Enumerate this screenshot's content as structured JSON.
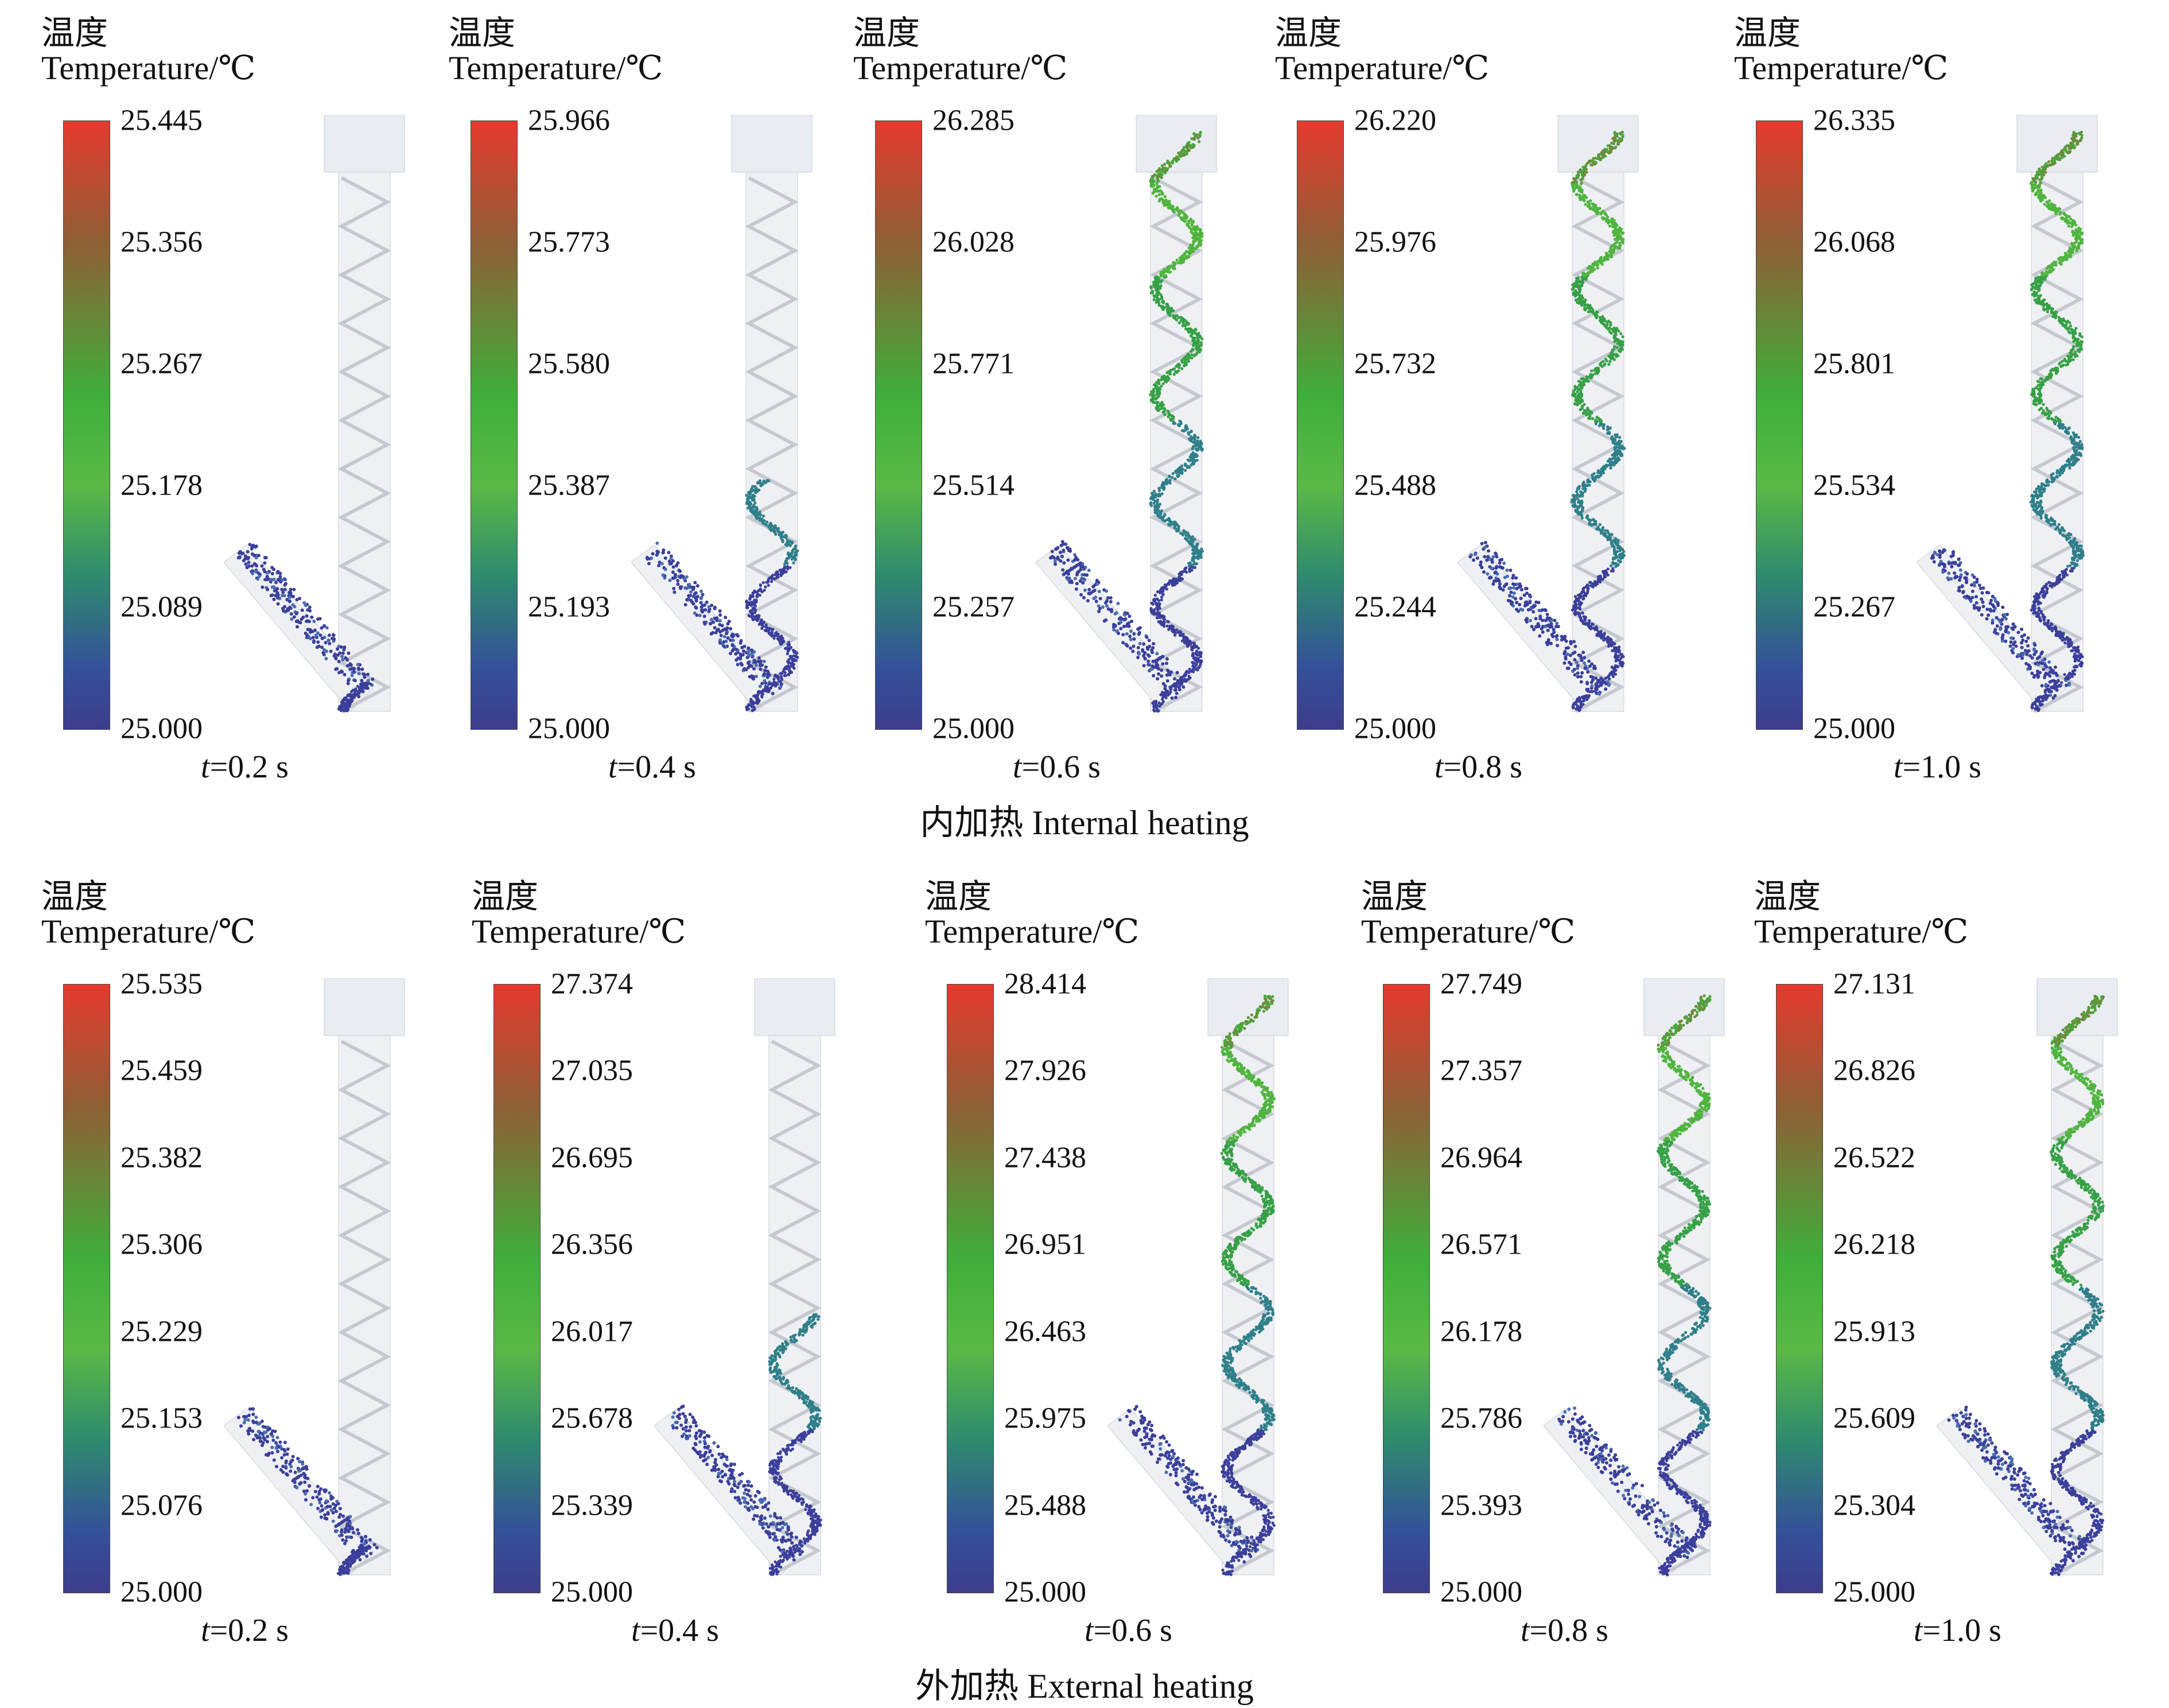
{
  "legend_title_cn": "温度",
  "legend_title_en": "Temperature/℃",
  "rows": [
    {
      "caption": "内加热 Internal heating",
      "panels": [
        {
          "time_var": "t",
          "time_val": "=0.2 s",
          "fill": 0.05,
          "ticks": [
            "25.445",
            "25.356",
            "25.267",
            "25.178",
            "25.089",
            "25.000"
          ]
        },
        {
          "time_var": "t",
          "time_val": "=0.4 s",
          "fill": 0.4,
          "ticks": [
            "25.966",
            "25.773",
            "25.580",
            "25.387",
            "25.193",
            "25.000"
          ]
        },
        {
          "time_var": "t",
          "time_val": "=0.6 s",
          "fill": 1.0,
          "ticks": [
            "26.285",
            "26.028",
            "25.771",
            "25.514",
            "25.257",
            "25.000"
          ]
        },
        {
          "time_var": "t",
          "time_val": "=0.8 s",
          "fill": 1.0,
          "ticks": [
            "26.220",
            "25.976",
            "25.732",
            "25.488",
            "25.244",
            "25.000"
          ]
        },
        {
          "time_var": "t",
          "time_val": "=1.0 s",
          "fill": 1.0,
          "ticks": [
            "26.335",
            "26.068",
            "25.801",
            "25.534",
            "25.267",
            "25.000"
          ]
        }
      ]
    },
    {
      "caption": "外加热 External heating",
      "panels": [
        {
          "time_var": "t",
          "time_val": "=0.2 s",
          "fill": 0.05,
          "ticks": [
            "25.535",
            "25.459",
            "25.382",
            "25.306",
            "25.229",
            "25.153",
            "25.076",
            "25.000"
          ]
        },
        {
          "time_var": "t",
          "time_val": "=0.4 s",
          "fill": 0.45,
          "ticks": [
            "27.374",
            "27.035",
            "26.695",
            "26.356",
            "26.017",
            "25.678",
            "25.339",
            "25.000"
          ]
        },
        {
          "time_var": "t",
          "time_val": "=0.6 s",
          "fill": 1.0,
          "ticks": [
            "28.414",
            "27.926",
            "27.438",
            "26.951",
            "26.463",
            "25.975",
            "25.488",
            "25.000"
          ]
        },
        {
          "time_var": "t",
          "time_val": "=0.8 s",
          "fill": 1.0,
          "ticks": [
            "27.749",
            "27.357",
            "26.964",
            "26.571",
            "26.178",
            "25.786",
            "25.393",
            "25.000"
          ]
        },
        {
          "time_var": "t",
          "time_val": "=1.0 s",
          "fill": 1.0,
          "ticks": [
            "27.131",
            "26.826",
            "26.522",
            "26.218",
            "25.913",
            "25.609",
            "25.304",
            "25.000"
          ]
        }
      ]
    }
  ]
}
